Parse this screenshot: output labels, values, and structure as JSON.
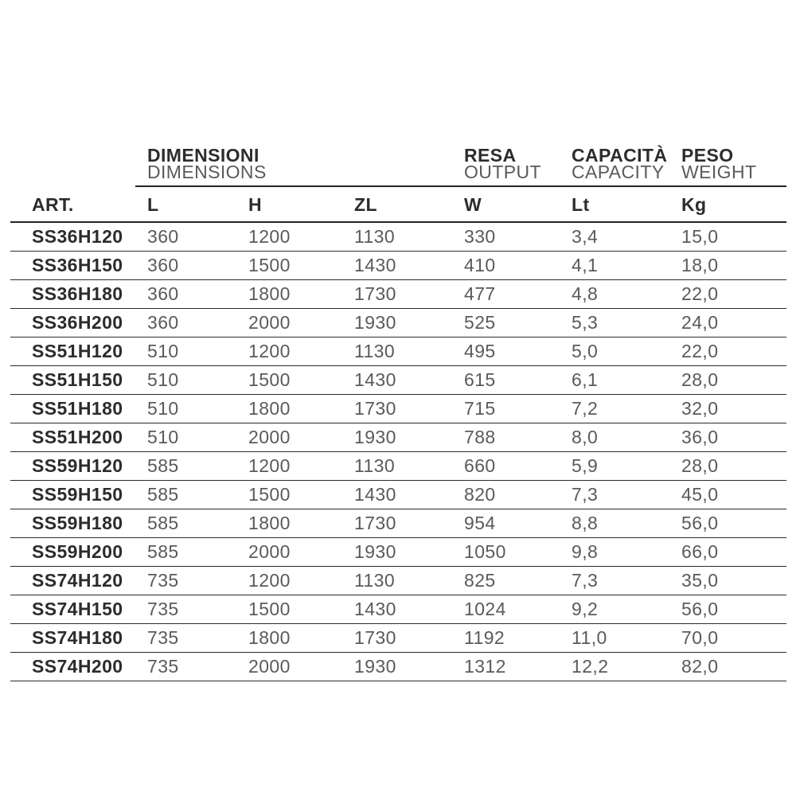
{
  "colors": {
    "background": "#ffffff",
    "text_dark": "#2b2c2e",
    "text_gray": "#595a5c",
    "rule": "#222324"
  },
  "table": {
    "art_header": "ART.",
    "column_groups": [
      {
        "label_it": "DIMENSIONI",
        "label_en": "DIMENSIONS",
        "spans_columns": [
          "L",
          "H",
          "ZL"
        ]
      },
      {
        "label_it": "RESA",
        "label_en": "OUTPUT",
        "spans_columns": [
          "W"
        ]
      },
      {
        "label_it": "CAPACITÀ",
        "label_en": "CAPACITY",
        "spans_columns": [
          "Lt"
        ]
      },
      {
        "label_it": "PESO",
        "label_en": "WEIGHT",
        "spans_columns": [
          "Kg"
        ]
      }
    ],
    "columns": [
      "L",
      "H",
      "ZL",
      "W",
      "Lt",
      "Kg"
    ],
    "rows": [
      {
        "art": "SS36H120",
        "L": "360",
        "H": "1200",
        "ZL": "1130",
        "W": "330",
        "Lt": "3,4",
        "Kg": "15,0"
      },
      {
        "art": "SS36H150",
        "L": "360",
        "H": "1500",
        "ZL": "1430",
        "W": "410",
        "Lt": "4,1",
        "Kg": "18,0"
      },
      {
        "art": "SS36H180",
        "L": "360",
        "H": "1800",
        "ZL": "1730",
        "W": "477",
        "Lt": "4,8",
        "Kg": "22,0"
      },
      {
        "art": "SS36H200",
        "L": "360",
        "H": "2000",
        "ZL": "1930",
        "W": "525",
        "Lt": "5,3",
        "Kg": "24,0"
      },
      {
        "art": "SS51H120",
        "L": "510",
        "H": "1200",
        "ZL": "1130",
        "W": "495",
        "Lt": "5,0",
        "Kg": "22,0"
      },
      {
        "art": "SS51H150",
        "L": "510",
        "H": "1500",
        "ZL": "1430",
        "W": "615",
        "Lt": "6,1",
        "Kg": "28,0"
      },
      {
        "art": "SS51H180",
        "L": "510",
        "H": "1800",
        "ZL": "1730",
        "W": "715",
        "Lt": "7,2",
        "Kg": "32,0"
      },
      {
        "art": "SS51H200",
        "L": "510",
        "H": "2000",
        "ZL": "1930",
        "W": "788",
        "Lt": "8,0",
        "Kg": "36,0"
      },
      {
        "art": "SS59H120",
        "L": "585",
        "H": "1200",
        "ZL": "1130",
        "W": "660",
        "Lt": "5,9",
        "Kg": "28,0"
      },
      {
        "art": "SS59H150",
        "L": "585",
        "H": "1500",
        "ZL": "1430",
        "W": "820",
        "Lt": "7,3",
        "Kg": "45,0"
      },
      {
        "art": "SS59H180",
        "L": "585",
        "H": "1800",
        "ZL": "1730",
        "W": "954",
        "Lt": "8,8",
        "Kg": "56,0"
      },
      {
        "art": "SS59H200",
        "L": "585",
        "H": "2000",
        "ZL": "1930",
        "W": "1050",
        "Lt": "9,8",
        "Kg": "66,0"
      },
      {
        "art": "SS74H120",
        "L": "735",
        "H": "1200",
        "ZL": "1130",
        "W": "825",
        "Lt": "7,3",
        "Kg": "35,0"
      },
      {
        "art": "SS74H150",
        "L": "735",
        "H": "1500",
        "ZL": "1430",
        "W": "1024",
        "Lt": "9,2",
        "Kg": "56,0"
      },
      {
        "art": "SS74H180",
        "L": "735",
        "H": "1800",
        "ZL": "1730",
        "W": "1192",
        "Lt": "11,0",
        "Kg": "70,0"
      },
      {
        "art": "SS74H200",
        "L": "735",
        "H": "2000",
        "ZL": "1930",
        "W": "1312",
        "Lt": "12,2",
        "Kg": "82,0"
      }
    ]
  }
}
